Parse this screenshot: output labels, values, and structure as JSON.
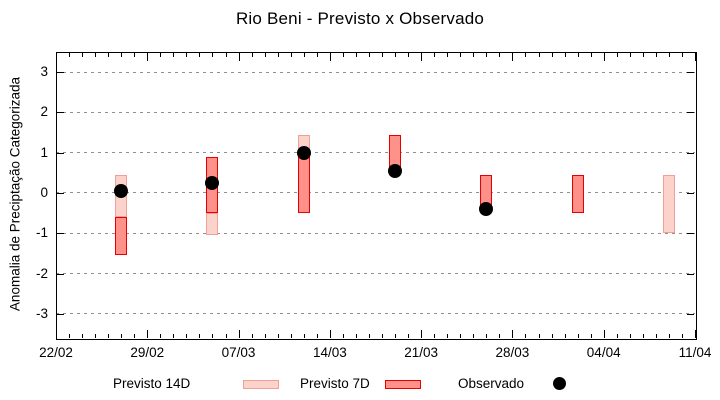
{
  "title": "Rio Beni - Previsto x Observado",
  "colors": {
    "p14_fill": "#fbd3cb",
    "p14_border": "#f0a096",
    "p7_fill": "#fe928b",
    "p7_border": "#e60000",
    "observado": "#000000",
    "grid": "#909090",
    "axis": "#000000"
  },
  "chart_data": {
    "type": "bar",
    "title": "Rio Beni - Previsto x Observado",
    "xlabel": "",
    "ylabel": "Anomalia de Preciptação Categorizada",
    "ylim": [
      -3.6,
      3.5
    ],
    "yticks": [
      -3,
      -2,
      -1,
      0,
      1,
      2,
      3
    ],
    "grid": "horizontal-dotted",
    "x_axis_start_date": "22/02",
    "x_axis_end_date": "11/04",
    "xlim_days": [
      0,
      49
    ],
    "xticks": [
      {
        "day": 0,
        "label": "22/02"
      },
      {
        "day": 7,
        "label": "29/02"
      },
      {
        "day": 14,
        "label": "07/03"
      },
      {
        "day": 21,
        "label": "14/03"
      },
      {
        "day": 28,
        "label": "21/03"
      },
      {
        "day": 35,
        "label": "28/03"
      },
      {
        "day": 42,
        "label": "04/04"
      },
      {
        "day": 49,
        "label": "11/04"
      }
    ],
    "minor_xtick_every_days": 1,
    "series_names": [
      "Previsto 14D",
      "Previsto 7D",
      "Observado"
    ],
    "points": [
      {
        "date": "27/02",
        "day": 5,
        "previsto14": [
          -0.6,
          0.45
        ],
        "previsto7": [
          -1.55,
          -0.6
        ],
        "observado": 0.05
      },
      {
        "date": "05/03",
        "day": 12,
        "previsto14": [
          -1.05,
          -0.5
        ],
        "previsto7": [
          -0.5,
          0.9
        ],
        "observado": 0.25
      },
      {
        "date": "12/03",
        "day": 19,
        "previsto14": [
          1.0,
          1.45
        ],
        "previsto7": [
          -0.5,
          1.0
        ],
        "observado": 1.0
      },
      {
        "date": "19/03",
        "day": 26,
        "previsto14": null,
        "previsto7": [
          0.55,
          1.45
        ],
        "observado": 0.55
      },
      {
        "date": "26/03",
        "day": 33,
        "previsto14": null,
        "previsto7": [
          -0.45,
          0.45
        ],
        "observado": -0.4
      },
      {
        "date": "02/04",
        "day": 40,
        "previsto14": null,
        "previsto7": [
          -0.5,
          0.45
        ],
        "observado": null
      },
      {
        "date": "09/04",
        "day": 47,
        "previsto14": [
          -1.0,
          0.45
        ],
        "previsto7": null,
        "observado": null
      }
    ]
  },
  "legend": {
    "items": [
      {
        "label": "Previsto 14D",
        "swatch": "p14"
      },
      {
        "label": "Previsto 7D",
        "swatch": "p7"
      },
      {
        "label": "Observado",
        "swatch": "dot"
      }
    ]
  }
}
